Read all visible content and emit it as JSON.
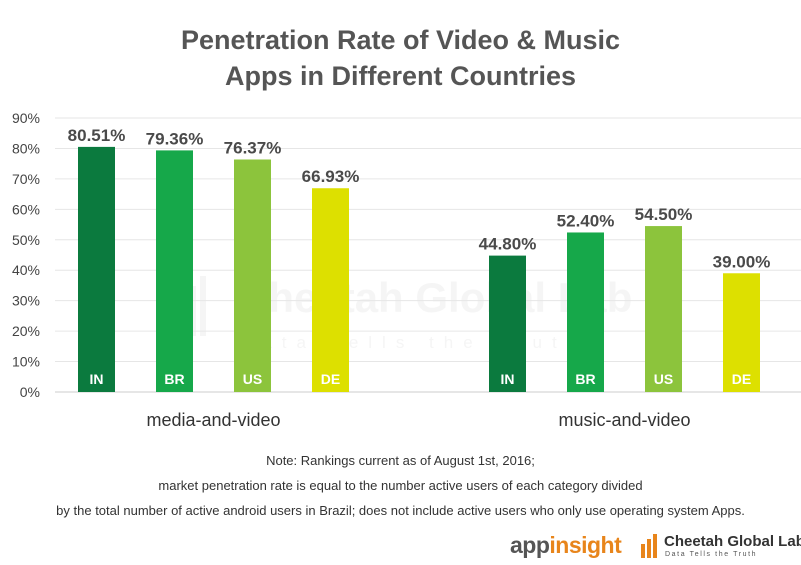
{
  "title_line1": "Penetration Rate of Video & Music",
  "title_line2": "Apps in Different Countries",
  "watermark": {
    "name": "Cheetah Global Lab",
    "tagline": "Data Tells the Truth"
  },
  "notes": [
    "Note: Rankings current as of August 1st, 2016;",
    "market penetration rate is equal to the number active users of each category divided",
    "by the total number of active android users in Brazil; does not include active users who only use operating system Apps."
  ],
  "logos": {
    "appinsight_a": "app",
    "appinsight_b": "insight",
    "cheetah_name": "Cheetah Global Lab",
    "cheetah_tagline": "Data Tells the Truth"
  },
  "colors": {
    "IN": "#0b7a3e",
    "BR": "#16a84a",
    "US": "#8cc43c",
    "DE": "#dde000",
    "grid": "#e6e6e6",
    "text": "#444444",
    "brand_orange": "#e8851b"
  },
  "chart_data": {
    "type": "bar",
    "title": "Penetration Rate of Video & Music Apps in Different Countries",
    "categories": [
      "media-and-video",
      "music-and-video"
    ],
    "series": [
      {
        "name": "IN",
        "values": [
          80.51,
          44.8
        ]
      },
      {
        "name": "BR",
        "values": [
          79.36,
          52.4
        ]
      },
      {
        "name": "US",
        "values": [
          76.37,
          54.5
        ]
      },
      {
        "name": "DE",
        "values": [
          66.93,
          39.0
        ]
      }
    ],
    "value_labels": [
      [
        "80.51%",
        "44.80%"
      ],
      [
        "79.36%",
        "52.40%"
      ],
      [
        "76.37%",
        "54.50%"
      ],
      [
        "66.93%",
        "39.00%"
      ]
    ],
    "yticks": [
      "0%",
      "10%",
      "20%",
      "30%",
      "40%",
      "50%",
      "60%",
      "70%",
      "80%",
      "90%"
    ],
    "ylim": [
      0,
      90
    ],
    "grid": true,
    "legend": "none"
  }
}
